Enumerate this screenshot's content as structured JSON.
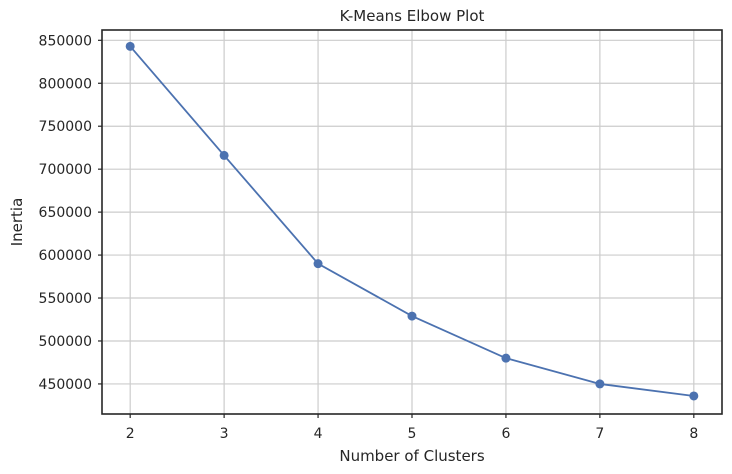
{
  "chart_data": {
    "type": "line",
    "title": "K-Means Elbow Plot",
    "xlabel": "Number of Clusters",
    "ylabel": "Inertia",
    "x": [
      2,
      3,
      4,
      5,
      6,
      7,
      8
    ],
    "x_tick_labels": [
      "2",
      "3",
      "4",
      "5",
      "6",
      "7",
      "8"
    ],
    "y_tick_values": [
      450000,
      500000,
      550000,
      600000,
      650000,
      700000,
      750000,
      800000,
      850000
    ],
    "y_tick_labels": [
      "450000",
      "500000",
      "550000",
      "600000",
      "650000",
      "700000",
      "750000",
      "800000",
      "850000"
    ],
    "xlim": [
      1.7,
      8.3
    ],
    "ylim": [
      415000,
      862000
    ],
    "grid": true,
    "legend": "none",
    "series": [
      {
        "values": [
          843000,
          716000,
          590000,
          529000,
          480000,
          450000,
          436000
        ],
        "color": "#4c72b0",
        "marker": "circle"
      }
    ]
  }
}
